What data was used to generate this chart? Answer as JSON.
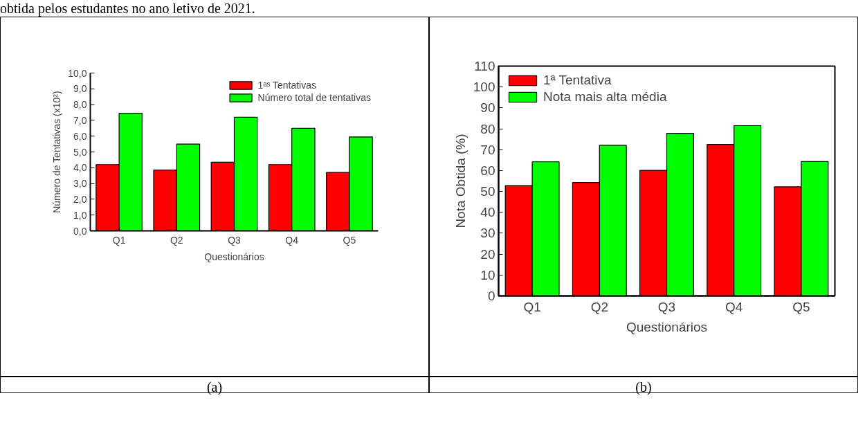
{
  "chart_data": [
    {
      "type": "bar",
      "categories": [
        "Q1",
        "Q2",
        "Q3",
        "Q4",
        "Q5"
      ],
      "xlabel": "Questionários",
      "ylabel": "Número de Tentativas (x10²)",
      "series": [
        {
          "name": "1ᵃˢ Tentativas",
          "color": "#ff0000",
          "values": [
            4.2,
            3.85,
            4.35,
            4.2,
            3.7
          ]
        },
        {
          "name": "Número total de tentativas",
          "color": "#00ff00",
          "values": [
            7.45,
            5.5,
            7.2,
            6.5,
            5.95
          ]
        }
      ],
      "ylim": [
        0,
        10
      ],
      "yticks": [
        {
          "value": 0,
          "label": "0,0"
        },
        {
          "value": 1,
          "label": "1,0"
        },
        {
          "value": 2,
          "label": "2,0"
        },
        {
          "value": 3,
          "label": "3,0"
        },
        {
          "value": 4,
          "label": "4,0"
        },
        {
          "value": 5,
          "label": "5,0"
        },
        {
          "value": 6,
          "label": "6,0"
        },
        {
          "value": 7,
          "label": "7,0"
        },
        {
          "value": 8,
          "label": "8,0"
        },
        {
          "value": 9,
          "label": "9,0"
        },
        {
          "value": 10,
          "label": "10,0"
        }
      ],
      "legend": "top right",
      "grid": false,
      "annotations": [
        "obtida pelos estudantes no ano letivo de 2021.",
        "(a)"
      ]
    },
    {
      "type": "bar",
      "categories": [
        "Q1",
        "Q2",
        "Q3",
        "Q4",
        "Q5"
      ],
      "xlabel": "Questionários",
      "ylabel": "Nota Obtida (%)",
      "series": [
        {
          "name": "1ª Tentativa",
          "color": "#ff0000",
          "values": [
            52.8,
            54.3,
            60.1,
            72.5,
            52.2
          ]
        },
        {
          "name": "Nota mais alta média",
          "color": "#00ff00",
          "values": [
            64.2,
            72.1,
            77.8,
            81.5,
            64.3
          ]
        }
      ],
      "ylim": [
        0,
        110
      ],
      "yticks": [
        0,
        10,
        20,
        30,
        40,
        50,
        60,
        70,
        80,
        90,
        100,
        110
      ],
      "legend": "top left",
      "grid": false,
      "annotations": [
        "(b)"
      ]
    }
  ]
}
